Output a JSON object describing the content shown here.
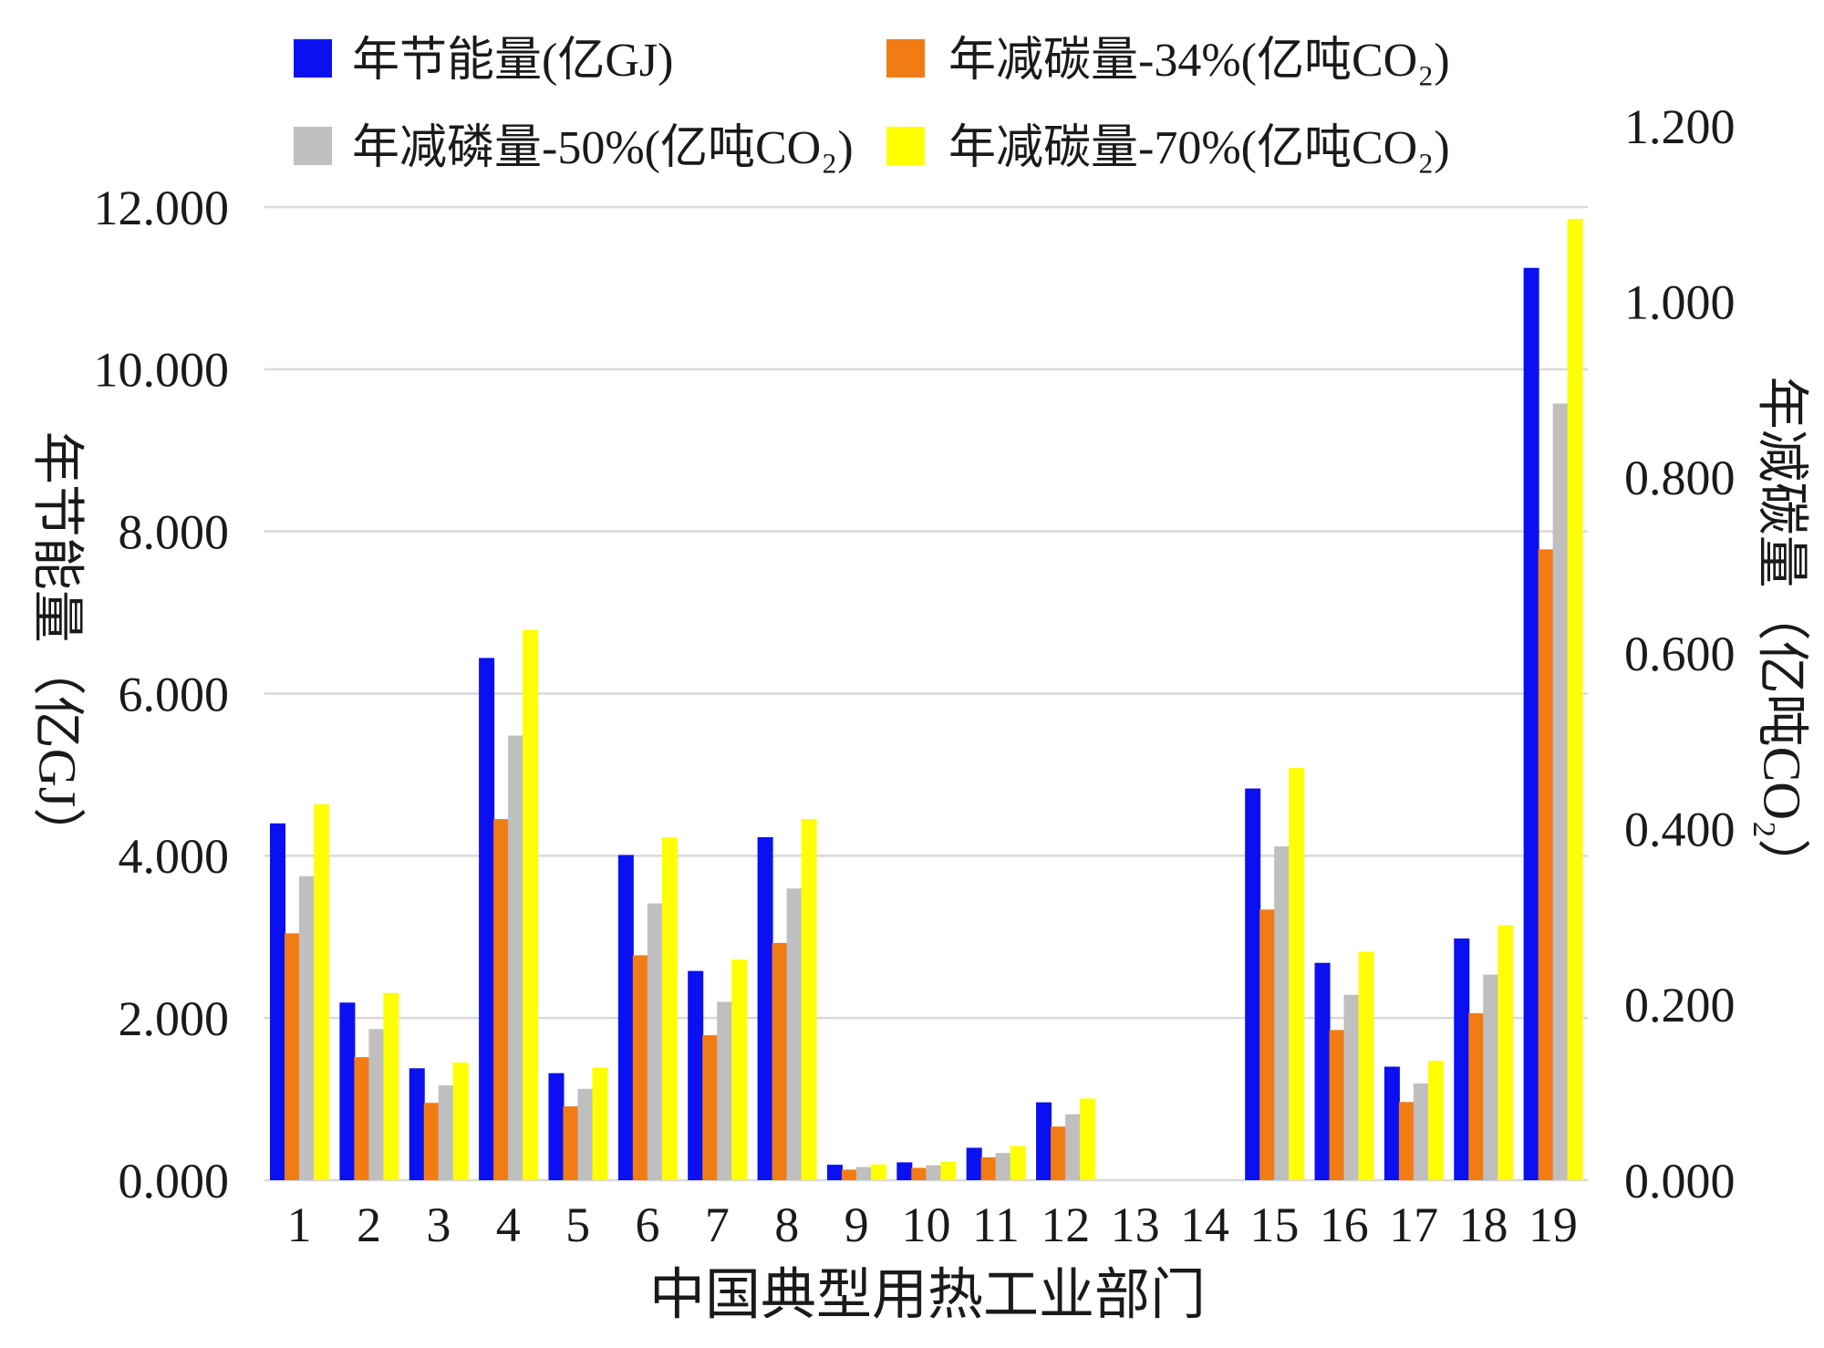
{
  "chart_data": {
    "type": "bar",
    "categories": [
      "1",
      "2",
      "3",
      "4",
      "5",
      "6",
      "7",
      "8",
      "9",
      "10",
      "11",
      "12",
      "13",
      "14",
      "15",
      "16",
      "17",
      "18",
      "19"
    ],
    "xlabel": "中国典型用热工业部门",
    "y_left": {
      "label": "年节能量（亿GJ）",
      "min": 0,
      "max": 12,
      "ticks": [
        {
          "value": 0,
          "label": "0.000"
        },
        {
          "value": 2,
          "label": "2.000"
        },
        {
          "value": 4,
          "label": "4.000"
        },
        {
          "value": 6,
          "label": "6.000"
        },
        {
          "value": 8,
          "label": "8.000"
        },
        {
          "value": 10,
          "label": "10.000"
        },
        {
          "value": 12,
          "label": "12.000"
        }
      ]
    },
    "y_right": {
      "label": "年减碳量（亿吨CO₂）",
      "min": 0,
      "max": 1.2,
      "ticks": [
        {
          "value": 0,
          "label": "0.000"
        },
        {
          "value": 0.2,
          "label": "0.200"
        },
        {
          "value": 0.4,
          "label": "0.400"
        },
        {
          "value": 0.6,
          "label": "0.600"
        },
        {
          "value": 0.8,
          "label": "0.800"
        },
        {
          "value": 1.0,
          "label": "1.000"
        },
        {
          "value": 1.2,
          "label": "1.200"
        }
      ]
    },
    "grid": true,
    "legend": "top",
    "series": [
      {
        "name": "年节能量(亿GJ)",
        "axis": "left",
        "color": "#0b10f2",
        "values": [
          4.4,
          2.19,
          1.38,
          6.44,
          1.32,
          4.01,
          2.58,
          4.23,
          0.19,
          0.22,
          0.4,
          0.96,
          0,
          0,
          4.83,
          2.68,
          1.4,
          2.98,
          11.25
        ]
      },
      {
        "name": "年减碳量-34%(亿吨CO₂)",
        "axis": "right",
        "color": "#f27c14",
        "values": [
          0.281,
          0.14,
          0.088,
          0.411,
          0.084,
          0.256,
          0.165,
          0.27,
          0.012,
          0.014,
          0.026,
          0.061,
          0,
          0,
          0.308,
          0.171,
          0.089,
          0.19,
          0.718
        ]
      },
      {
        "name": "年减磷量-50%(亿吨CO₂)",
        "axis": "right",
        "color": "#bfbfbf",
        "values": [
          0.346,
          0.172,
          0.108,
          0.506,
          0.104,
          0.315,
          0.203,
          0.332,
          0.015,
          0.017,
          0.031,
          0.075,
          0,
          0,
          0.38,
          0.211,
          0.11,
          0.234,
          0.884
        ]
      },
      {
        "name": "年减碳量-70%(亿吨CO₂)",
        "axis": "right",
        "color": "#ffff00",
        "values": [
          0.428,
          0.213,
          0.134,
          0.626,
          0.128,
          0.39,
          0.251,
          0.411,
          0.018,
          0.021,
          0.039,
          0.093,
          0,
          0,
          0.469,
          0.26,
          0.136,
          0.29,
          1.094
        ]
      }
    ]
  }
}
